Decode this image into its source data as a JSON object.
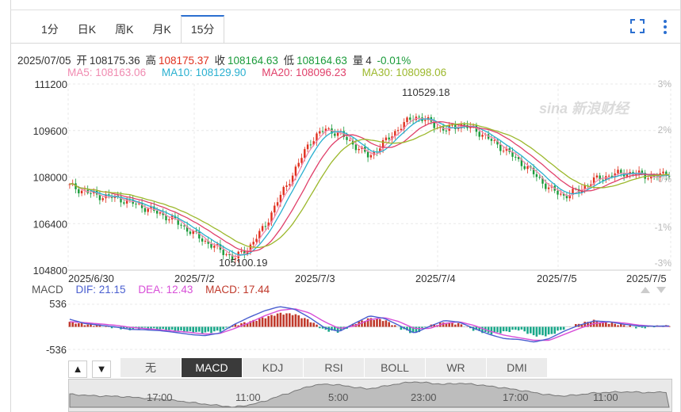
{
  "tabs": [
    {
      "label": "1分"
    },
    {
      "label": "日K"
    },
    {
      "label": "周K"
    },
    {
      "label": "月K"
    },
    {
      "label": "15分"
    }
  ],
  "active_tab": "15分",
  "quote": {
    "date": "2025/07/05",
    "open_label": "开",
    "open": "108175.36",
    "high_label": "高",
    "high": "108175.37",
    "close_label": "收",
    "close": "108164.63",
    "low_label": "低",
    "low": "108164.63",
    "volume_label": "量",
    "volume": "4",
    "change": "-0.01%"
  },
  "ma_legend": [
    {
      "label": "MA5: 108163.06",
      "color": "#f08ab0"
    },
    {
      "label": "MA10: 108129.90",
      "color": "#2ab0d0"
    },
    {
      "label": "MA20: 108096.23",
      "color": "#e0406a"
    },
    {
      "label": "MA30: 108098.06",
      "color": "#9cb82c"
    }
  ],
  "macd_legend": {
    "name": "MACD",
    "dif": "DIF: 21.15",
    "dif_color": "#4a5fd0",
    "dea": "DEA: 12.43",
    "dea_color": "#d84fd8",
    "macd": "MACD: 17.44",
    "macd_color": "#c0392b"
  },
  "indicator_tabs": [
    "无",
    "MACD",
    "KDJ",
    "RSI",
    "BOLL",
    "WR",
    "DMI"
  ],
  "active_indicator": "MACD",
  "navigator_labels": [
    "17:00",
    "11:00",
    "5:00",
    "23:00",
    "17:00",
    "11:00"
  ],
  "watermark": "sina 新浪财经",
  "chart_data": {
    "type": "candlestick",
    "interval": "15分",
    "price_ticks": [
      "111200",
      "109600",
      "108000",
      "106400",
      "104800"
    ],
    "price_tick_values": [
      111200,
      109600,
      108000,
      106400,
      104800
    ],
    "ylim": [
      104800,
      111200
    ],
    "pct_ticks": [
      "3%",
      "2%",
      "0%",
      "-1%",
      "-3%"
    ],
    "x_labels": [
      "2025/6/30",
      "2025/7/2",
      "2025/7/3",
      "2025/7/4",
      "2025/7/5",
      "2025/7/5"
    ],
    "annotations": [
      {
        "text": "110529.18",
        "value": 110529.18,
        "position": "top"
      },
      {
        "text": "105100.19",
        "value": 105100.19,
        "position": "bottom"
      }
    ],
    "close_path": [
      107700,
      107500,
      107350,
      107300,
      107150,
      106950,
      106750,
      106500,
      106150,
      105800,
      105500,
      105200,
      105600,
      106300,
      107300,
      108200,
      109200,
      109650,
      109500,
      109100,
      108700,
      109200,
      109700,
      110100,
      109900,
      109600,
      109800,
      109650,
      109300,
      108950,
      108550,
      108100,
      107600,
      107350,
      107550,
      107900,
      108050,
      108150,
      108100,
      108000,
      108150
    ],
    "macd_ticks": [
      "536",
      "-536"
    ],
    "macd_range": [
      -536,
      536
    ],
    "macd_hist": [
      120,
      60,
      30,
      -20,
      -60,
      -40,
      -60,
      -90,
      -120,
      -140,
      -100,
      40,
      120,
      220,
      320,
      300,
      150,
      -80,
      -120,
      80,
      200,
      160,
      -30,
      -160,
      30,
      100,
      70,
      -80,
      -160,
      -120,
      -60,
      -210,
      -200,
      -40,
      70,
      150,
      90,
      40,
      -30,
      10,
      20
    ],
    "dif_series": [
      180,
      80,
      40,
      0,
      -60,
      -70,
      -90,
      -130,
      -180,
      -210,
      -150,
      60,
      230,
      380,
      480,
      420,
      220,
      -20,
      -110,
      80,
      260,
      200,
      30,
      -150,
      10,
      150,
      110,
      -40,
      -180,
      -280,
      -300,
      -360,
      -280,
      -100,
      40,
      140,
      120,
      60,
      20,
      15,
      21
    ],
    "dea_series": [
      120,
      100,
      70,
      40,
      -10,
      -40,
      -70,
      -100,
      -130,
      -170,
      -160,
      -40,
      100,
      260,
      390,
      430,
      330,
      120,
      -40,
      20,
      170,
      220,
      120,
      -40,
      -40,
      80,
      120,
      30,
      -100,
      -200,
      -260,
      -320,
      -320,
      -180,
      -40,
      80,
      120,
      90,
      40,
      15,
      12
    ]
  }
}
